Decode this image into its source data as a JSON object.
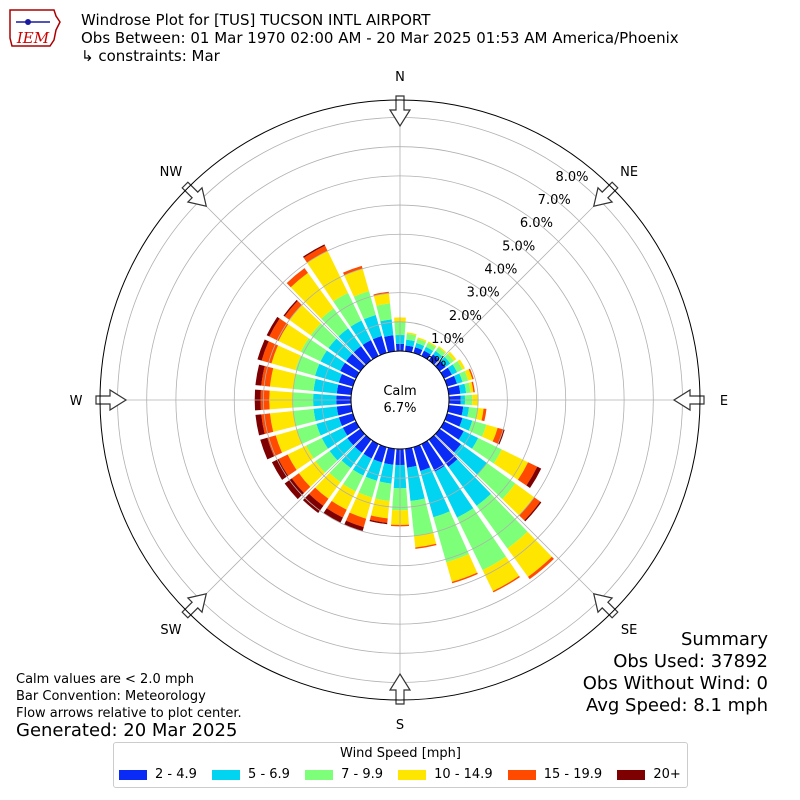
{
  "header": {
    "line1": "Windrose Plot for [TUS] TUCSON INTL AIRPORT",
    "line2": "Obs Between: 01 Mar 1970 02:00 AM - 20 Mar 2025 01:53 AM America/Phoenix",
    "line3": "↳ constraints: Mar"
  },
  "logo": {
    "text": "IEM"
  },
  "footer": {
    "note1": "Calm values are < 2.0 mph",
    "note2": "Bar Convention: Meteorology",
    "note3": "Flow arrows relative to plot center.",
    "generated": "Generated: 20 Mar 2025"
  },
  "summary": {
    "title": "Summary",
    "obs_used": "Obs Used: 37892",
    "obs_without_wind": "Obs Without Wind: 0",
    "avg_speed": "Avg Speed: 8.1 mph"
  },
  "legend": {
    "title": "Wind Speed [mph]",
    "items": [
      {
        "label": "2 - 4.9",
        "color": "#0a2bf5"
      },
      {
        "label": "5 - 6.9",
        "color": "#00d4f0"
      },
      {
        "label": "7 - 9.9",
        "color": "#7dff7a"
      },
      {
        "label": "10 - 14.9",
        "color": "#ffe600"
      },
      {
        "label": "15 - 19.9",
        "color": "#ff4a00"
      },
      {
        "label": "20+",
        "color": "#7f0000"
      }
    ]
  },
  "chart_data": {
    "type": "windrose",
    "units": "percent of observations",
    "calm_label": "Calm",
    "calm_value": "6.7%",
    "calm_percent": 6.7,
    "radial_ticks": [
      "0.0%",
      "1.0%",
      "2.0%",
      "3.0%",
      "4.0%",
      "5.0%",
      "6.0%",
      "7.0%",
      "8.0%"
    ],
    "rmax_percent": 8.6,
    "compass_labels": [
      "N",
      "NE",
      "E",
      "SE",
      "S",
      "SW",
      "W",
      "NW"
    ],
    "directions_deg": [
      0,
      10,
      20,
      30,
      40,
      50,
      60,
      70,
      80,
      90,
      100,
      110,
      120,
      130,
      140,
      150,
      160,
      170,
      180,
      190,
      200,
      210,
      220,
      230,
      240,
      250,
      260,
      270,
      280,
      290,
      300,
      310,
      320,
      330,
      340,
      350
    ],
    "speed_bins": [
      "2 - 4.9",
      "5 - 6.9",
      "7 - 9.9",
      "10 - 14.9",
      "15 - 19.9",
      "20+"
    ],
    "cumulative_percent": [
      [
        0.25,
        0.55,
        1.0,
        1.15,
        1.15,
        1.15
      ],
      [
        0.2,
        0.4,
        0.6,
        0.65,
        0.65,
        0.65
      ],
      [
        0.2,
        0.35,
        0.5,
        0.55,
        0.55,
        0.55
      ],
      [
        0.2,
        0.35,
        0.5,
        0.55,
        0.55,
        0.55
      ],
      [
        0.25,
        0.4,
        0.55,
        0.6,
        0.6,
        0.6
      ],
      [
        0.25,
        0.45,
        0.6,
        0.7,
        0.7,
        0.7
      ],
      [
        0.3,
        0.5,
        0.7,
        0.8,
        0.8,
        0.8
      ],
      [
        0.35,
        0.55,
        0.75,
        0.9,
        0.95,
        0.95
      ],
      [
        0.4,
        0.6,
        0.75,
        0.85,
        0.9,
        0.9
      ],
      [
        0.4,
        0.55,
        0.8,
        1.0,
        1.0,
        1.0
      ],
      [
        0.5,
        0.7,
        1.0,
        1.2,
        1.3,
        1.3
      ],
      [
        0.55,
        0.9,
        1.4,
        1.8,
        2.0,
        2.05
      ],
      [
        0.75,
        1.3,
        2.2,
        3.2,
        3.55,
        3.7
      ],
      [
        0.9,
        2.0,
        3.2,
        4.0,
        4.25,
        4.3
      ],
      [
        1.15,
        2.8,
        4.6,
        5.8,
        5.9,
        5.9
      ],
      [
        1.05,
        2.8,
        4.8,
        5.6,
        5.65,
        5.65
      ],
      [
        0.85,
        2.5,
        4.1,
        4.8,
        4.85,
        4.85
      ],
      [
        0.65,
        1.8,
        3.0,
        3.4,
        3.45,
        3.45
      ],
      [
        0.55,
        1.35,
        2.1,
        2.6,
        2.65,
        2.65
      ],
      [
        0.55,
        1.2,
        1.8,
        2.4,
        2.55,
        2.6
      ],
      [
        0.55,
        1.2,
        1.8,
        2.55,
        2.85,
        3.0
      ],
      [
        0.55,
        1.2,
        1.8,
        2.5,
        2.8,
        3.0
      ],
      [
        0.55,
        1.2,
        1.8,
        2.5,
        2.8,
        3.1
      ],
      [
        0.55,
        1.3,
        1.9,
        2.6,
        2.9,
        3.2
      ],
      [
        0.5,
        1.3,
        1.9,
        2.6,
        2.95,
        3.2
      ],
      [
        0.5,
        1.3,
        2.0,
        2.75,
        3.05,
        3.3
      ],
      [
        0.5,
        1.3,
        2.0,
        2.8,
        3.1,
        3.3
      ],
      [
        0.5,
        1.3,
        2.0,
        2.8,
        3.1,
        3.3
      ],
      [
        0.5,
        1.3,
        2.0,
        2.8,
        3.1,
        3.3
      ],
      [
        0.5,
        1.35,
        2.05,
        2.9,
        3.25,
        3.4
      ],
      [
        0.6,
        1.35,
        2.1,
        2.95,
        3.3,
        3.4
      ],
      [
        0.6,
        1.35,
        2.1,
        3.0,
        3.2,
        3.25
      ],
      [
        0.6,
        1.35,
        2.2,
        3.7,
        3.9,
        3.9
      ],
      [
        0.6,
        1.35,
        2.4,
        4.0,
        4.2,
        4.25
      ],
      [
        0.6,
        1.35,
        2.2,
        3.0,
        3.1,
        3.1
      ],
      [
        0.55,
        1.1,
        1.65,
        2.0,
        2.05,
        2.05
      ]
    ],
    "flow_arrows": "relative to plot center"
  }
}
